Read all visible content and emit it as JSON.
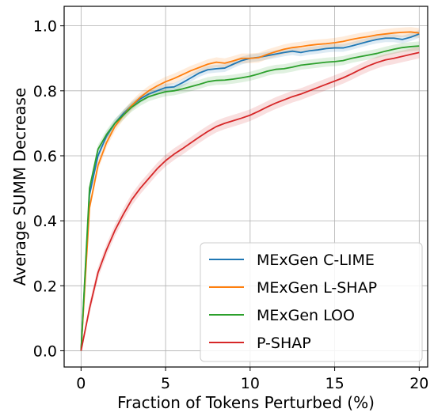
{
  "chart_data": {
    "type": "line",
    "xlabel": "Fraction of Tokens Perturbed (%)",
    "ylabel": "Average SUMM Decrease",
    "xlim": [
      -1,
      20.5
    ],
    "ylim": [
      -0.05,
      1.06
    ],
    "x_ticks": [
      0,
      5,
      10,
      15,
      20
    ],
    "y_ticks": [
      "0.0",
      "0.2",
      "0.4",
      "0.6",
      "0.8",
      "1.0"
    ],
    "grid": true,
    "legend_position": "lower-right",
    "x": [
      0,
      0.5,
      1,
      1.5,
      2,
      2.5,
      3,
      3.5,
      4,
      4.5,
      5,
      5.5,
      6,
      6.5,
      7,
      7.5,
      8,
      8.5,
      9,
      9.5,
      10,
      10.5,
      11,
      11.5,
      12,
      12.5,
      13,
      13.5,
      14,
      14.5,
      15,
      15.5,
      16,
      16.5,
      17,
      17.5,
      18,
      18.5,
      19,
      19.5,
      20
    ],
    "series": [
      {
        "name": "MExGen C-LIME",
        "color": "#1f77b4",
        "band": 0.012,
        "values": [
          0.0,
          0.48,
          0.6,
          0.66,
          0.7,
          0.73,
          0.755,
          0.775,
          0.79,
          0.8,
          0.81,
          0.812,
          0.825,
          0.84,
          0.855,
          0.865,
          0.868,
          0.87,
          0.882,
          0.893,
          0.9,
          0.903,
          0.908,
          0.913,
          0.918,
          0.922,
          0.918,
          0.923,
          0.926,
          0.93,
          0.932,
          0.932,
          0.938,
          0.945,
          0.952,
          0.958,
          0.962,
          0.962,
          0.958,
          0.965,
          0.975
        ]
      },
      {
        "name": "MExGen L-SHAP",
        "color": "#ff7f0e",
        "band": 0.015,
        "values": [
          0.0,
          0.44,
          0.57,
          0.64,
          0.69,
          0.725,
          0.755,
          0.78,
          0.8,
          0.815,
          0.828,
          0.838,
          0.85,
          0.862,
          0.872,
          0.882,
          0.888,
          0.885,
          0.892,
          0.9,
          0.9,
          0.902,
          0.912,
          0.92,
          0.928,
          0.933,
          0.936,
          0.94,
          0.943,
          0.945,
          0.948,
          0.952,
          0.958,
          0.963,
          0.967,
          0.972,
          0.975,
          0.978,
          0.98,
          0.981,
          0.978
        ]
      },
      {
        "name": "MExGen LOO",
        "color": "#2ca02c",
        "band": 0.014,
        "values": [
          0.0,
          0.5,
          0.62,
          0.665,
          0.7,
          0.725,
          0.75,
          0.768,
          0.782,
          0.79,
          0.797,
          0.8,
          0.806,
          0.813,
          0.82,
          0.828,
          0.832,
          0.833,
          0.836,
          0.84,
          0.845,
          0.852,
          0.86,
          0.866,
          0.868,
          0.873,
          0.879,
          0.882,
          0.885,
          0.888,
          0.89,
          0.893,
          0.9,
          0.905,
          0.91,
          0.915,
          0.922,
          0.928,
          0.933,
          0.936,
          0.938
        ]
      },
      {
        "name": "P-SHAP",
        "color": "#d62728",
        "band": 0.018,
        "values": [
          0.0,
          0.13,
          0.24,
          0.31,
          0.37,
          0.42,
          0.465,
          0.5,
          0.53,
          0.56,
          0.585,
          0.605,
          0.622,
          0.64,
          0.658,
          0.675,
          0.69,
          0.7,
          0.708,
          0.716,
          0.725,
          0.737,
          0.75,
          0.762,
          0.772,
          0.782,
          0.79,
          0.8,
          0.81,
          0.82,
          0.83,
          0.84,
          0.852,
          0.865,
          0.877,
          0.887,
          0.895,
          0.9,
          0.906,
          0.912,
          0.918
        ]
      }
    ]
  }
}
